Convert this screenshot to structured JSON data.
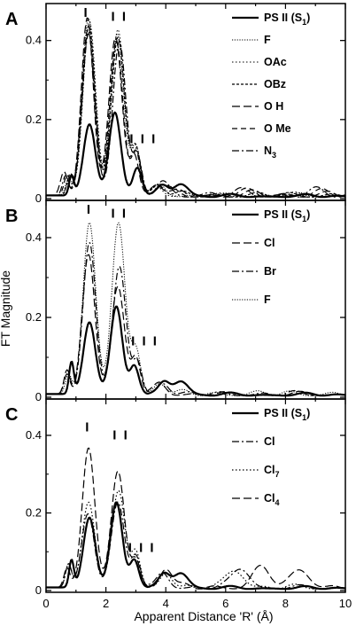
{
  "chart_data": {
    "type": "line",
    "x_range": [
      0,
      10
    ],
    "y_range": [
      0,
      0.48
    ],
    "x_ticks": [
      "0",
      "2",
      "4",
      "6",
      "8",
      "10"
    ],
    "y_ticks": [
      "0",
      "0.2",
      "0.4"
    ],
    "x_label": "Apparent Distance 'R' (Å)",
    "y_label": "FT Magnitude",
    "panels": [
      {
        "letter": "A",
        "peak_labels": [
          {
            "text": "I",
            "x": 1.35,
            "y": 0.46
          },
          {
            "text": "I I",
            "x": 2.45,
            "y": 0.45
          },
          {
            "text": "I I I",
            "x": 3.25,
            "y": 0.14
          }
        ],
        "series": [
          {
            "name": "PS II (S",
            "sub": "1",
            "suffix": ")",
            "style": "solid",
            "width": 2.2,
            "peaks": [
              [
                0.85,
                0.05,
                0.08
              ],
              [
                1.45,
                0.18,
                0.2
              ],
              [
                2.3,
                0.21,
                0.2
              ],
              [
                3.05,
                0.07,
                0.15
              ],
              [
                3.9,
                0.025,
                0.18
              ],
              [
                4.5,
                0.032,
                0.25
              ]
            ]
          },
          {
            "name": "F",
            "style": "dot-fine",
            "width": 1,
            "peaks": [
              [
                0.75,
                0.04,
                0.1
              ],
              [
                1.42,
                0.45,
                0.21
              ],
              [
                2.38,
                0.41,
                0.22
              ],
              [
                3.0,
                0.12,
                0.16
              ],
              [
                3.8,
                0.03,
                0.2
              ]
            ]
          },
          {
            "name": "OAc",
            "style": "dot",
            "width": 1,
            "peaks": [
              [
                0.8,
                0.045,
                0.1
              ],
              [
                1.45,
                0.44,
                0.21
              ],
              [
                2.4,
                0.42,
                0.22
              ],
              [
                3.0,
                0.11,
                0.15
              ],
              [
                3.7,
                0.025,
                0.2
              ]
            ]
          },
          {
            "name": "OBz",
            "style": "dash-short",
            "width": 1.2,
            "peaks": [
              [
                0.8,
                0.05,
                0.1
              ],
              [
                1.43,
                0.43,
                0.21
              ],
              [
                2.4,
                0.4,
                0.22
              ],
              [
                3.0,
                0.12,
                0.16
              ],
              [
                3.75,
                0.03,
                0.2
              ]
            ]
          },
          {
            "name": "O H",
            "style": "dash-long",
            "width": 1.2,
            "peaks": [
              [
                0.6,
                0.06,
                0.12
              ],
              [
                1.38,
                0.45,
                0.2
              ],
              [
                2.32,
                0.4,
                0.22
              ],
              [
                2.95,
                0.1,
                0.15
              ],
              [
                3.7,
                0.03,
                0.2
              ]
            ]
          },
          {
            "name": "O Me",
            "style": "dash-med",
            "width": 1.2,
            "peaks": [
              [
                0.7,
                0.05,
                0.1
              ],
              [
                1.4,
                0.42,
                0.21
              ],
              [
                2.35,
                0.39,
                0.22
              ],
              [
                3.0,
                0.11,
                0.15
              ],
              [
                3.8,
                0.025,
                0.2
              ]
            ]
          },
          {
            "name": "N",
            "sub": "3",
            "style": "dash-dot",
            "width": 1.2,
            "peaks": [
              [
                0.65,
                0.05,
                0.1
              ],
              [
                1.42,
                0.41,
                0.21
              ],
              [
                2.45,
                0.39,
                0.22
              ],
              [
                3.05,
                0.1,
                0.15
              ],
              [
                3.85,
                0.025,
                0.2
              ]
            ]
          }
        ]
      },
      {
        "letter": "B",
        "peak_labels": [
          {
            "text": "I",
            "x": 1.45,
            "y": 0.46
          },
          {
            "text": "I I",
            "x": 2.45,
            "y": 0.45
          },
          {
            "text": "I I I",
            "x": 3.3,
            "y": 0.13
          }
        ],
        "series": [
          {
            "name": "PS II (S",
            "sub": "1",
            "suffix": ")",
            "style": "solid",
            "width": 2.2,
            "peaks": [
              [
                0.85,
                0.08,
                0.08
              ],
              [
                1.45,
                0.18,
                0.2
              ],
              [
                2.35,
                0.22,
                0.2
              ],
              [
                2.95,
                0.07,
                0.15
              ],
              [
                3.95,
                0.03,
                0.18
              ],
              [
                4.5,
                0.035,
                0.25
              ]
            ]
          },
          {
            "name": "Cl",
            "style": "dash-long",
            "width": 1.2,
            "peaks": [
              [
                0.7,
                0.06,
                0.1
              ],
              [
                1.42,
                0.35,
                0.21
              ],
              [
                2.4,
                0.27,
                0.22
              ],
              [
                3.0,
                0.09,
                0.15
              ],
              [
                3.8,
                0.03,
                0.2
              ]
            ]
          },
          {
            "name": "Br",
            "style": "dash-dot",
            "width": 1.2,
            "peaks": [
              [
                0.7,
                0.05,
                0.1
              ],
              [
                1.45,
                0.38,
                0.21
              ],
              [
                2.45,
                0.32,
                0.22
              ],
              [
                3.05,
                0.08,
                0.15
              ],
              [
                3.9,
                0.03,
                0.2
              ]
            ]
          },
          {
            "name": "F",
            "style": "dot-fine",
            "width": 1,
            "peaks": [
              [
                0.75,
                0.05,
                0.1
              ],
              [
                1.45,
                0.43,
                0.21
              ],
              [
                2.42,
                0.43,
                0.22
              ],
              [
                3.0,
                0.11,
                0.16
              ],
              [
                3.8,
                0.03,
                0.2
              ]
            ]
          }
        ]
      },
      {
        "letter": "C",
        "peak_labels": [
          {
            "text": "I",
            "x": 1.4,
            "y": 0.41
          },
          {
            "text": "I I",
            "x": 2.5,
            "y": 0.39
          },
          {
            "text": "I I I",
            "x": 3.2,
            "y": 0.1
          }
        ],
        "series": [
          {
            "name": "PS II (S",
            "sub": "1",
            "suffix": ")",
            "style": "solid",
            "width": 2.2,
            "peaks": [
              [
                0.85,
                0.07,
                0.08
              ],
              [
                1.45,
                0.18,
                0.2
              ],
              [
                2.35,
                0.22,
                0.2
              ],
              [
                2.95,
                0.07,
                0.15
              ],
              [
                3.95,
                0.035,
                0.18
              ],
              [
                4.5,
                0.04,
                0.25
              ]
            ]
          },
          {
            "name": "Cl",
            "style": "dash-dot",
            "width": 1.2,
            "peaks": [
              [
                0.75,
                0.06,
                0.1
              ],
              [
                1.4,
                0.19,
                0.21
              ],
              [
                2.4,
                0.22,
                0.22
              ],
              [
                3.0,
                0.08,
                0.15
              ],
              [
                3.9,
                0.04,
                0.2
              ],
              [
                6.5,
                0.05,
                0.3
              ]
            ]
          },
          {
            "name": "Cl",
            "sub": "7",
            "style": "dot",
            "width": 1.2,
            "peaks": [
              [
                0.75,
                0.06,
                0.1
              ],
              [
                1.42,
                0.22,
                0.21
              ],
              [
                2.42,
                0.25,
                0.22
              ],
              [
                3.0,
                0.09,
                0.15
              ],
              [
                4.0,
                0.04,
                0.2
              ],
              [
                6.3,
                0.045,
                0.3
              ]
            ]
          },
          {
            "name": "Cl",
            "sub": "4",
            "style": "dash-long",
            "width": 1.2,
            "peaks": [
              [
                0.7,
                0.05,
                0.1
              ],
              [
                1.42,
                0.36,
                0.21
              ],
              [
                2.4,
                0.3,
                0.22
              ],
              [
                3.0,
                0.07,
                0.15
              ],
              [
                4.0,
                0.05,
                0.2
              ],
              [
                7.2,
                0.05,
                0.3
              ],
              [
                8.5,
                0.045,
                0.3
              ]
            ]
          }
        ]
      }
    ]
  }
}
